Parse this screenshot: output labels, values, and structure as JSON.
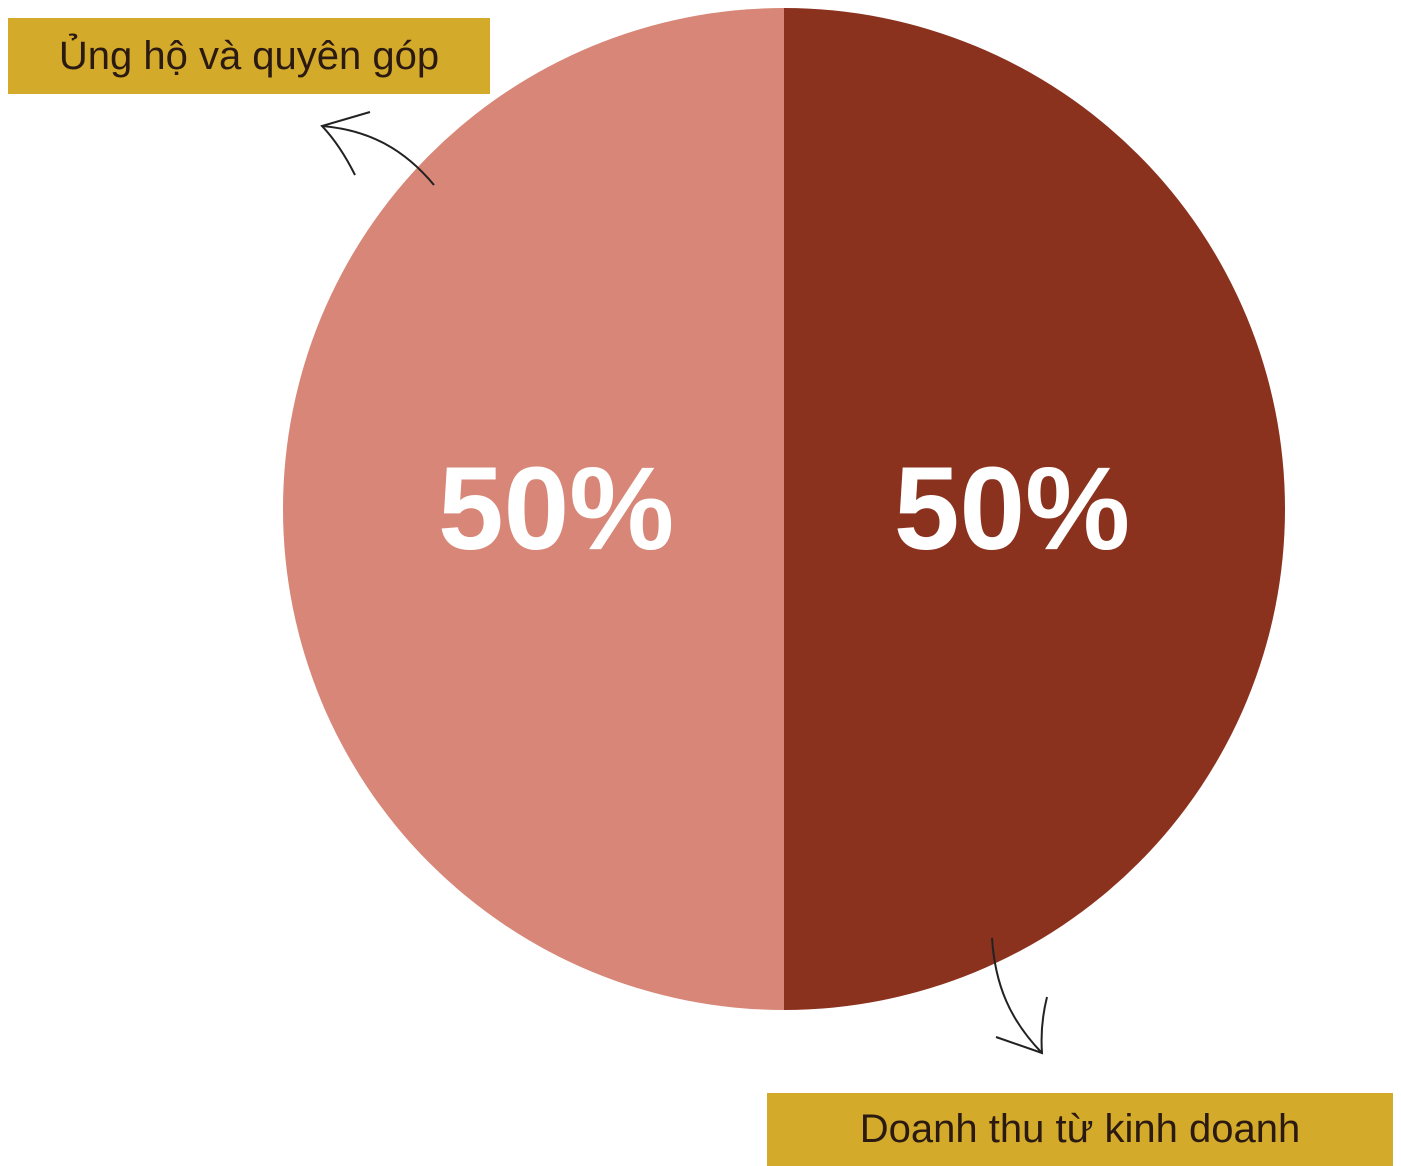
{
  "chart_data": {
    "type": "pie",
    "categories": [
      "Ủng hộ và quyên góp",
      "Doanh thu từ kinh doanh"
    ],
    "values": [
      50,
      50
    ],
    "slice_labels": [
      "50%",
      "50%"
    ],
    "title": "",
    "legend_placement": "callouts top-left and bottom-right",
    "colors": [
      "#d78677",
      "#8b321f"
    ],
    "label_box_color": "#d4aa2b"
  }
}
